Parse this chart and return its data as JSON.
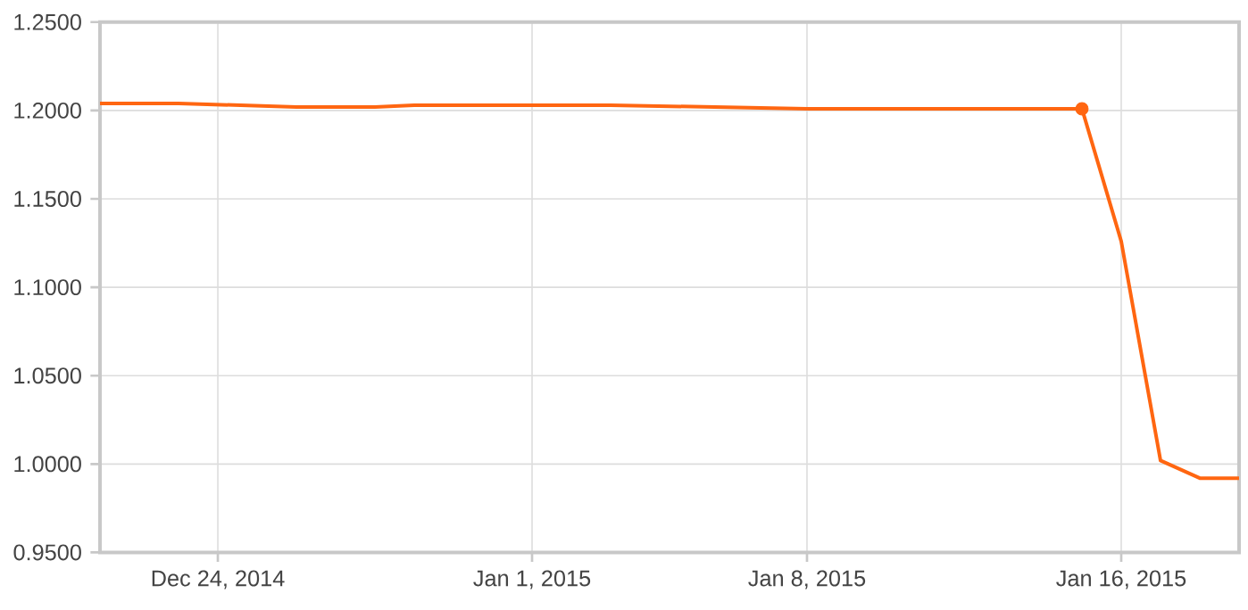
{
  "chart_data": {
    "type": "line",
    "grid": true,
    "marker": "none",
    "line_style": "solid",
    "xlim": [
      "2014-12-21",
      "2015-01-19"
    ],
    "xticks": [
      {
        "value": "2014-12-24",
        "label": "Dec 24, 2014"
      },
      {
        "value": "2015-01-01",
        "label": "Jan 1, 2015"
      },
      {
        "value": "2015-01-08",
        "label": "Jan 8, 2015"
      },
      {
        "value": "2015-01-16",
        "label": "Jan 16, 2015"
      }
    ],
    "ylim": [
      0.95,
      1.25
    ],
    "yticks": [
      {
        "value": 0.95,
        "label": "0.9500"
      },
      {
        "value": 1.0,
        "label": "1.0000"
      },
      {
        "value": 1.05,
        "label": "1.0500"
      },
      {
        "value": 1.1,
        "label": "1.1000"
      },
      {
        "value": 1.15,
        "label": "1.1500"
      },
      {
        "value": 1.2,
        "label": "1.2000"
      },
      {
        "value": 1.25,
        "label": "1.2500"
      }
    ],
    "series": [
      {
        "color": "#ff6611",
        "x": [
          "2014-12-21",
          "2014-12-23",
          "2014-12-26",
          "2014-12-28",
          "2014-12-29",
          "2015-01-01",
          "2015-01-03",
          "2015-01-08",
          "2015-01-15",
          "2015-01-16",
          "2015-01-17",
          "2015-01-18",
          "2015-01-19"
        ],
        "values": [
          1.204,
          1.204,
          1.202,
          1.202,
          1.203,
          1.203,
          1.203,
          1.201,
          1.201,
          1.126,
          1.002,
          0.992,
          0.992
        ]
      },
      {
        "type": "scatter",
        "marker": "circle",
        "color": "#ff6611",
        "x": [
          "2015-01-15"
        ],
        "values": [
          1.201
        ]
      }
    ]
  }
}
